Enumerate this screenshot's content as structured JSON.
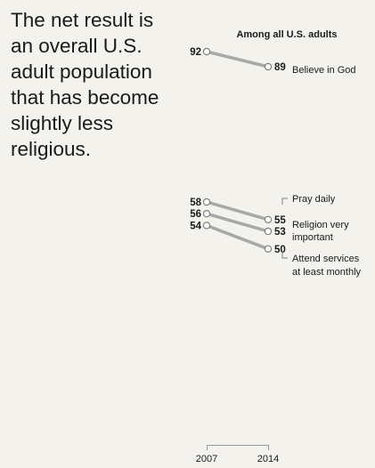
{
  "headline": "The net result is an overall U.S. adult population that has become slightly less religious.",
  "colors": {
    "line": "#a8a8a8",
    "marker_fill": "#ffffff",
    "marker_stroke": "#7f7f7f",
    "text": "#1a1a1a",
    "background": "#f4f2ec"
  },
  "chart_data": {
    "type": "line",
    "title": "Among all U.S. adults",
    "x": [
      "2007",
      "2014"
    ],
    "series": [
      {
        "name": "Believe in God",
        "values": [
          92,
          89
        ]
      },
      {
        "name": "Pray daily",
        "values": [
          58,
          55
        ]
      },
      {
        "name": "Religion very important",
        "values": [
          56,
          53
        ]
      },
      {
        "name": "Attend services at least monthly",
        "values": [
          54,
          50
        ]
      }
    ],
    "labels": {
      "god": "Believe in God",
      "pray": "Pray daily",
      "religion_line1": "Religion very",
      "religion_line2": "important",
      "attend_line1": "Attend services",
      "attend_line2": "at least monthly"
    },
    "xlabel": "",
    "ylabel": "",
    "grid": false
  }
}
